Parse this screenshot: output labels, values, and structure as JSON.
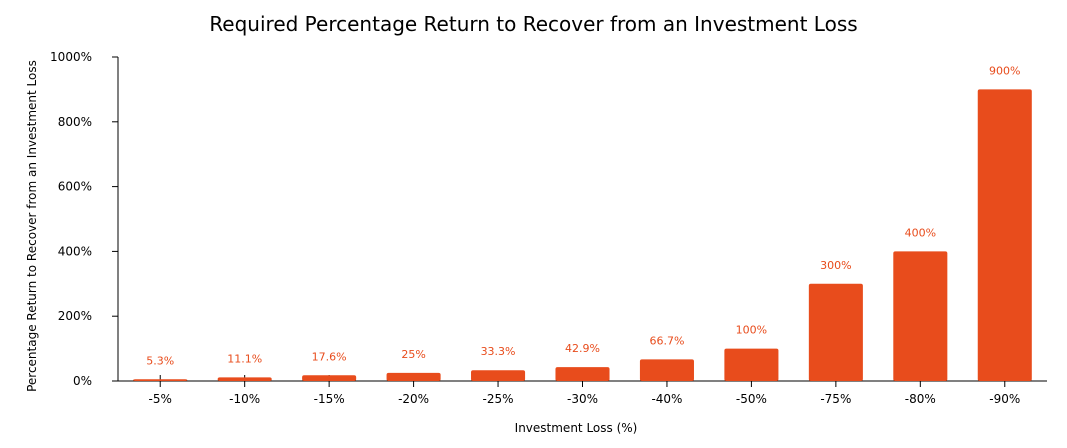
{
  "chart_data": {
    "type": "bar",
    "title": "Required Percentage Return to Recover from an Investment Loss",
    "xlabel": "Investment Loss (%)",
    "ylabel": "Percentage Return to Recover from an Investment Loss",
    "categories": [
      "-5%",
      "-10%",
      "-15%",
      "-20%",
      "-25%",
      "-30%",
      "-40%",
      "-50%",
      "-75%",
      "-80%",
      "-90%"
    ],
    "values": [
      5.3,
      11.1,
      17.6,
      25,
      33.3,
      42.9,
      66.7,
      100,
      300,
      400,
      900
    ],
    "data_labels": [
      "5.3%",
      "11.1%",
      "17.6%",
      "25%",
      "33.3%",
      "42.9%",
      "66.7%",
      "100%",
      "300%",
      "400%",
      "900%"
    ],
    "ylim": [
      0,
      1000
    ],
    "yticks": [
      0,
      200,
      400,
      600,
      800,
      1000
    ],
    "ytick_labels": [
      "0%",
      "200%",
      "400%",
      "600%",
      "800%",
      "1000%"
    ],
    "grid": false,
    "legend": "none",
    "colors": {
      "bar": "#e84c1c",
      "data_label": "#e84c1c",
      "axis": "#000000",
      "text": "#000000"
    }
  }
}
